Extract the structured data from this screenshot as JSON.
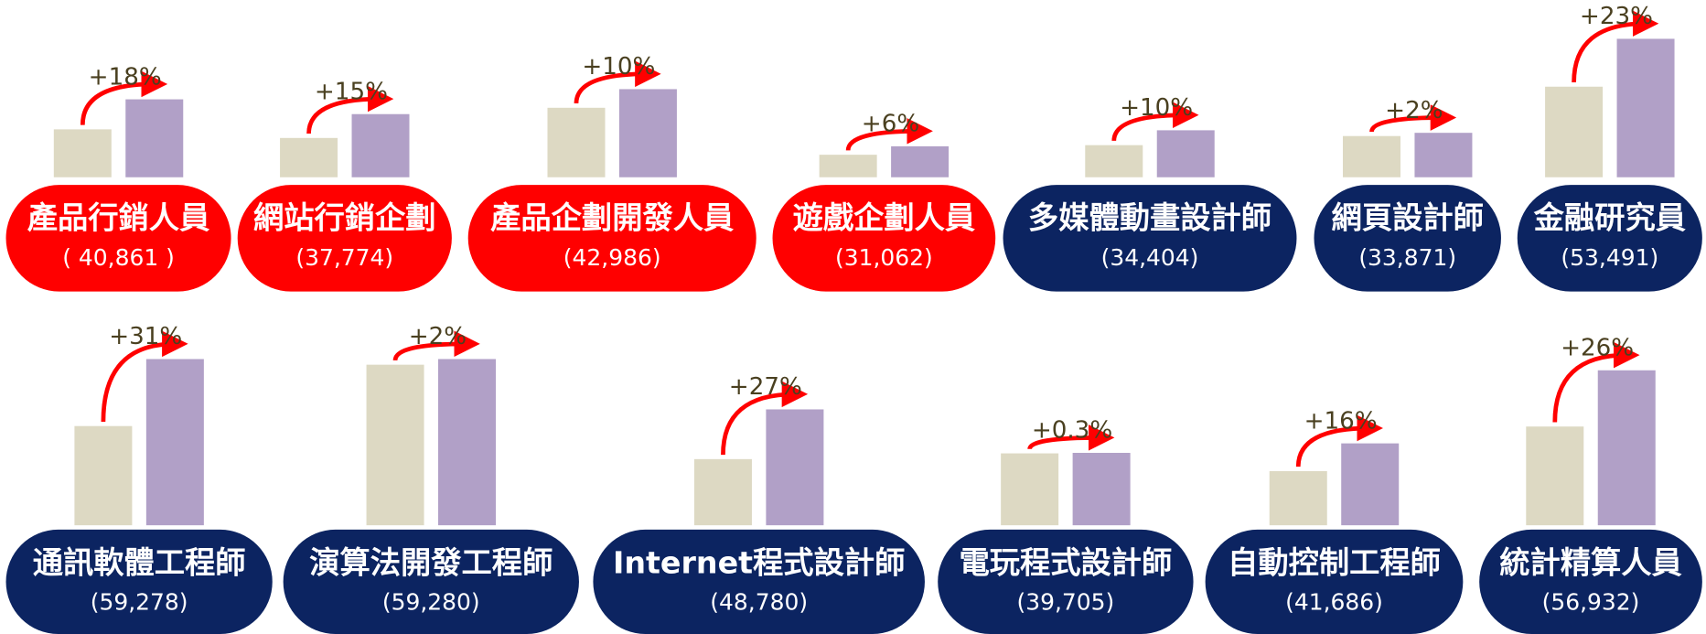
{
  "chart_data": {
    "type": "bar",
    "categories": [
      "產品行銷人員",
      "網站行銷企劃",
      "產品企劃開發人員",
      "遊戲企劃人員",
      "多媒體動畫設計師",
      "網頁設計師",
      "金融研究員",
      "通訊軟體工程師",
      "演算法開發工程師",
      "Internet程式設計師",
      "電玩程式設計師",
      "自動控制工程師",
      "統計精算人員"
    ],
    "values": [
      40861,
      37774,
      42986,
      31062,
      34404,
      33871,
      53491,
      59278,
      59280,
      48780,
      39705,
      41686,
      56932
    ],
    "value_labels": [
      "( 40,861 )",
      "(37,774)",
      "(42,986)",
      "(31,062)",
      "(34,404)",
      "(33,871)",
      "(53,491)",
      "(59,278)",
      "(59,280)",
      "(48,780)",
      "(39,705)",
      "(41,686)",
      "(56,932)"
    ],
    "previous_values": [
      34600,
      32800,
      39100,
      29300,
      31300,
      33200,
      43500,
      45300,
      58100,
      38400,
      39600,
      35900,
      45200
    ],
    "changes": [
      18,
      15,
      10,
      6,
      10,
      2,
      23,
      31,
      2,
      27,
      0.3,
      16,
      26
    ],
    "change_labels": [
      "+18%",
      "+15%",
      "+10%",
      "+6%",
      "+10%",
      "+2%",
      "+23%",
      "+31%",
      "+2%",
      "+27%",
      "+0.3%",
      "+16%",
      "+26%"
    ],
    "pill_colors": [
      "#ff0000",
      "#ff0000",
      "#ff0000",
      "#ff0000",
      "#0c2461",
      "#0c2461",
      "#0c2461",
      "#0c2461",
      "#0c2461",
      "#0c2461",
      "#0c2461",
      "#0c2461",
      "#0c2461"
    ],
    "previous_color": "#ddd9c3",
    "color": "#b1a0c7",
    "arrow_color": "#ff0000",
    "ylim": [
      24600,
      60000
    ]
  }
}
